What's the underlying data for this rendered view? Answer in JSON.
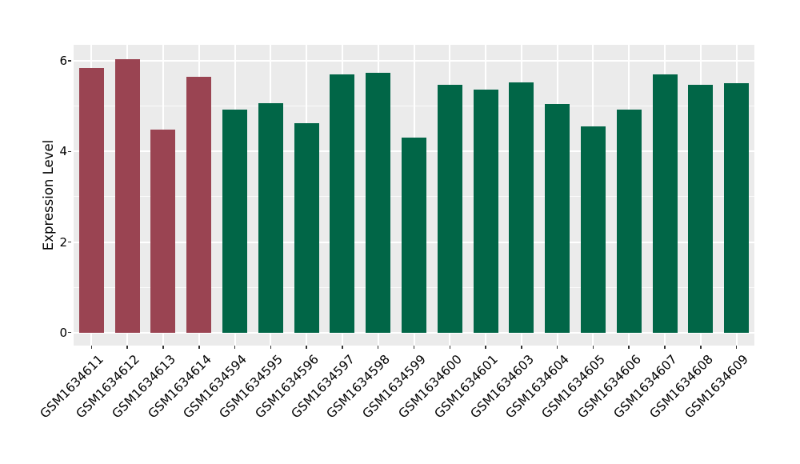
{
  "chart_data": {
    "type": "bar",
    "title": "",
    "xlabel": "",
    "ylabel": "Expression Level",
    "categories": [
      "GSM1634611",
      "GSM1634612",
      "GSM1634613",
      "GSM1634614",
      "GSM1634594",
      "GSM1634595",
      "GSM1634596",
      "GSM1634597",
      "GSM1634598",
      "GSM1634599",
      "GSM1634600",
      "GSM1634601",
      "GSM1634603",
      "GSM1634604",
      "GSM1634605",
      "GSM1634606",
      "GSM1634607",
      "GSM1634608",
      "GSM1634609"
    ],
    "values": [
      5.84,
      6.04,
      4.48,
      5.64,
      4.92,
      5.06,
      4.63,
      5.7,
      5.74,
      4.3,
      5.48,
      5.36,
      5.52,
      5.05,
      4.55,
      4.92,
      5.7,
      5.48,
      5.51
    ],
    "groups": [
      0,
      0,
      0,
      0,
      1,
      1,
      1,
      1,
      1,
      1,
      1,
      1,
      1,
      1,
      1,
      1,
      1,
      1,
      1
    ],
    "group_colors": [
      "#9A4452",
      "#016647"
    ],
    "yticks": [
      0,
      2,
      4,
      6
    ],
    "ytick_labels": [
      "0",
      "2",
      "4",
      "6"
    ],
    "yminor": [
      1,
      3,
      5
    ],
    "ylim": [
      -0.3,
      6.36
    ],
    "grid": "on",
    "legend": "none",
    "panel_bg": "#EBEBEB",
    "grid_color": "#FFFFFF",
    "tick_color": "#333333",
    "text_color": "#000000"
  }
}
